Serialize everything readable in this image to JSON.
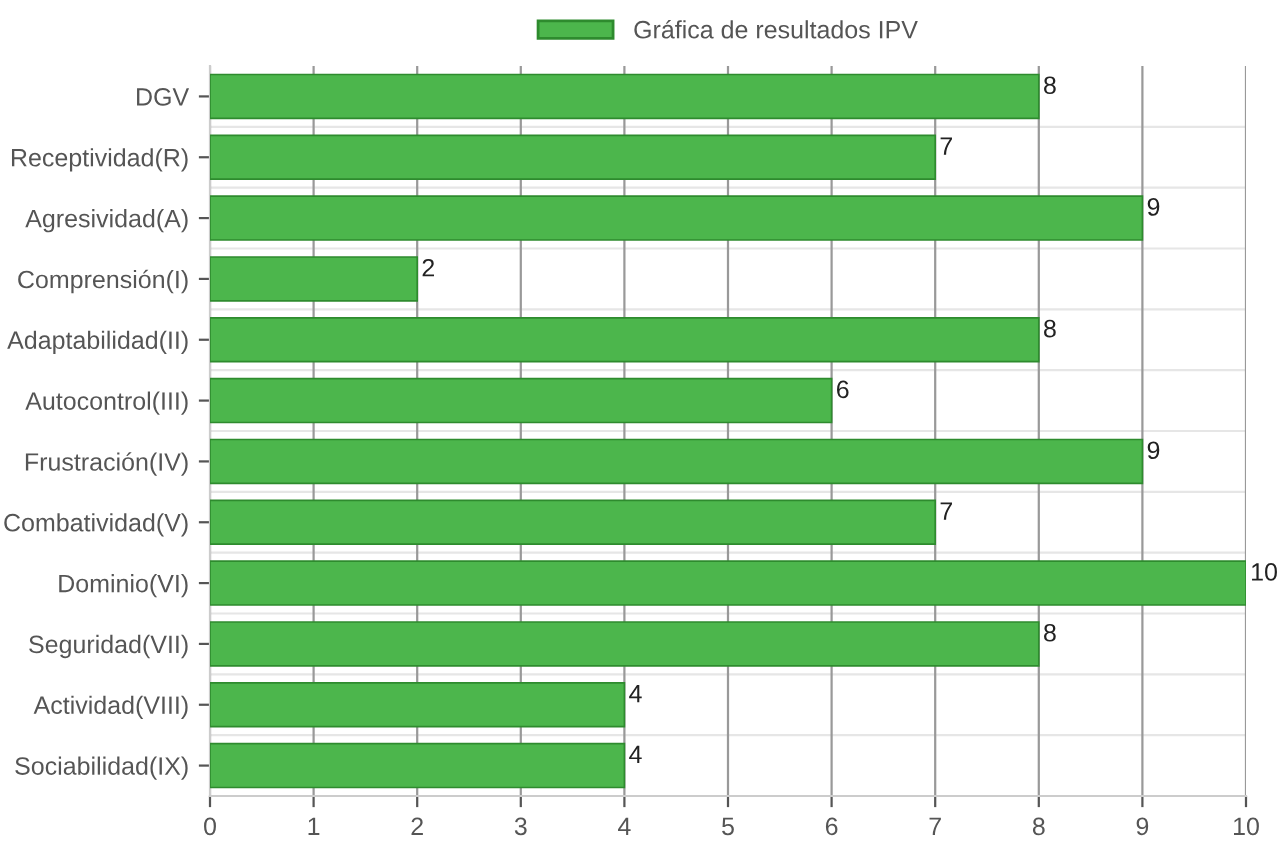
{
  "chart_data": {
    "type": "bar",
    "orientation": "horizontal",
    "categories": [
      "DGV",
      "Receptividad(R)",
      "Agresividad(A)",
      "Comprensión(I)",
      "Adaptabilidad(II)",
      "Autocontrol(III)",
      "Frustración(IV)",
      "Combatividad(V)",
      "Dominio(VI)",
      "Seguridad(VII)",
      "Actividad(VIII)",
      "Sociabilidad(IX)"
    ],
    "series": [
      {
        "name": "Gráfica de resultados IPV",
        "color": "#4cb64c",
        "values": [
          8,
          7,
          9,
          2,
          8,
          6,
          9,
          7,
          10,
          8,
          4,
          4
        ]
      }
    ],
    "xlim": [
      0,
      10
    ],
    "xticks": [
      0,
      1,
      2,
      3,
      4,
      5,
      6,
      7,
      8,
      9,
      10
    ],
    "grid": true,
    "legend": "top",
    "data_labels": true
  }
}
